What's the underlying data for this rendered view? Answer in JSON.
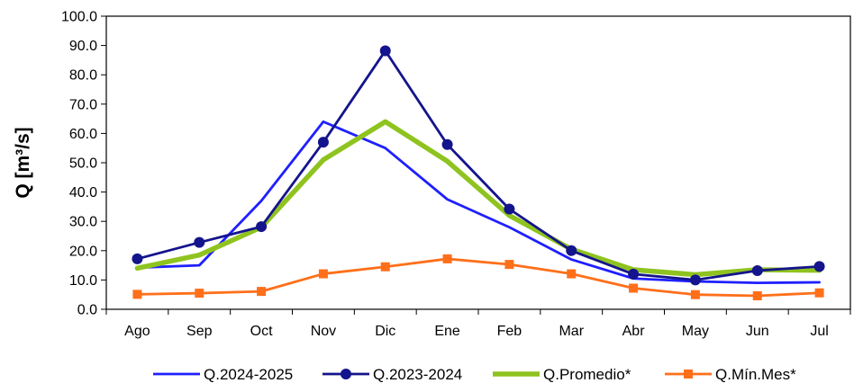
{
  "chart_data": {
    "type": "line",
    "title": "",
    "xlabel": "",
    "ylabel": "Q [m³/s]",
    "ylim": [
      0,
      100
    ],
    "ytick_step": 10,
    "ytick_decimals": 1,
    "grid": false,
    "legend_position": "bottom",
    "categories": [
      "Ago",
      "Sep",
      "Oct",
      "Nov",
      "Dic",
      "Ene",
      "Feb",
      "Mar",
      "Abr",
      "May",
      "Jun",
      "Jul"
    ],
    "series": [
      {
        "name": "Q.2024-2025",
        "color": "#1f1fff",
        "marker": "none",
        "values": [
          14.2,
          15.0,
          37.0,
          64.0,
          55.0,
          37.5,
          28.0,
          17.0,
          10.5,
          9.5,
          9.0,
          9.2
        ]
      },
      {
        "name": "Q.2023-2024",
        "color": "#14148c",
        "marker": "circle",
        "values": [
          17.2,
          22.8,
          28.2,
          57.0,
          88.2,
          56.2,
          34.2,
          20.0,
          12.0,
          10.0,
          13.2,
          14.6
        ]
      },
      {
        "name": "Q.Promedio*",
        "color": "#8fc31f",
        "marker": "none",
        "values": [
          14.0,
          18.5,
          28.0,
          51.0,
          64.0,
          50.5,
          32.0,
          20.5,
          13.5,
          11.8,
          13.5,
          13.3
        ]
      },
      {
        "name": "Q.Mín.Mes*",
        "color": "#ff6f1a",
        "marker": "square",
        "values": [
          5.1,
          5.5,
          6.1,
          12.1,
          14.5,
          17.2,
          15.3,
          12.1,
          7.2,
          5.0,
          4.6,
          5.6
        ]
      }
    ]
  }
}
